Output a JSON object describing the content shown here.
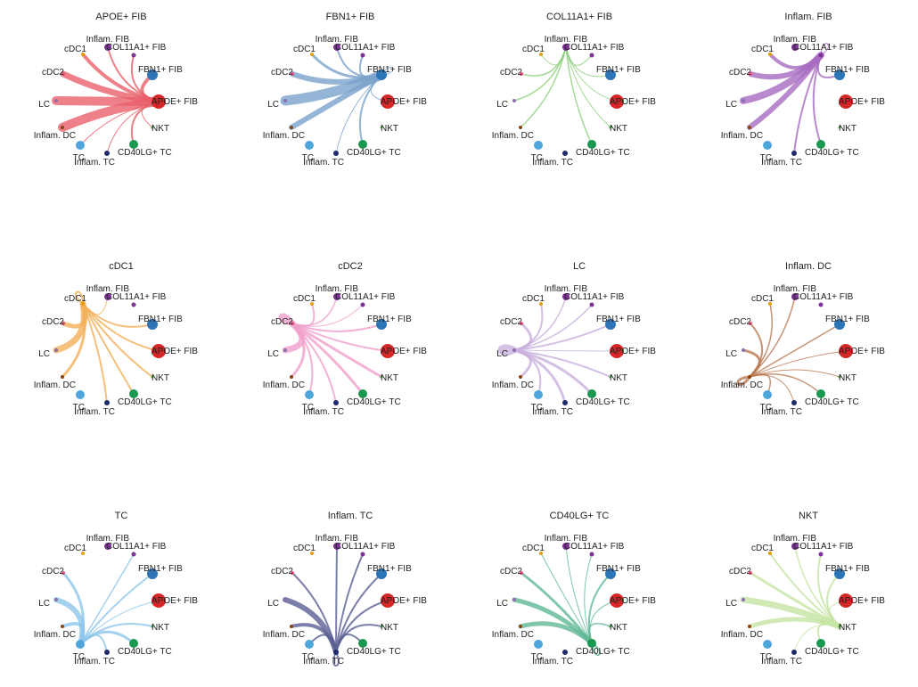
{
  "figure": {
    "type": "circle-plot",
    "description_label": "Cell-cell communication circle plots by source cell group"
  },
  "nodes": [
    {
      "name": "APOE+ FIB",
      "color": "#d62728",
      "size": 8
    },
    {
      "name": "FBN1+ FIB",
      "color": "#2e75b6",
      "size": 6
    },
    {
      "name": "COL11A1+ FIB",
      "color": "#7b3294",
      "size": 4
    },
    {
      "name": "Inflam. FIB",
      "color": "#7b3294",
      "size": 2.5
    },
    {
      "name": "cDC1",
      "color": "#e69f00",
      "size": 2
    },
    {
      "name": "cDC2",
      "color": "#e75480",
      "size": 2
    },
    {
      "name": "LC",
      "color": "#8b6fae",
      "size": 2
    },
    {
      "name": "Inflam. DC",
      "color": "#8b4513",
      "size": 2
    },
    {
      "name": "TC",
      "color": "#4ea5d9",
      "size": 5
    },
    {
      "name": "Inflam. TC",
      "color": "#1f2a6b",
      "size": 3
    },
    {
      "name": "CD40LG+ TC",
      "color": "#1a9850",
      "size": 5
    },
    {
      "name": "NKT",
      "color": "#4caf50",
      "size": 1.5
    }
  ],
  "panels": [
    {
      "title": "APOE+ FIB",
      "source": 0,
      "edge_color": "#e8606b",
      "edges": [
        {
          "to": 1,
          "w": 4
        },
        {
          "to": 2,
          "w": 2
        },
        {
          "to": 3,
          "w": 2
        },
        {
          "to": 4,
          "w": 4
        },
        {
          "to": 5,
          "w": 7
        },
        {
          "to": 6,
          "w": 10
        },
        {
          "to": 7,
          "w": 10
        },
        {
          "to": 8,
          "w": 1
        },
        {
          "to": 9,
          "w": 1
        },
        {
          "to": 10,
          "w": 2
        },
        {
          "to": 11,
          "w": 1
        }
      ]
    },
    {
      "title": "FBN1+ FIB",
      "source": 1,
      "edge_color": "#7aa3cc",
      "edges": [
        {
          "to": 1,
          "w": 1
        },
        {
          "to": 2,
          "w": 2
        },
        {
          "to": 3,
          "w": 2
        },
        {
          "to": 4,
          "w": 3
        },
        {
          "to": 5,
          "w": 6
        },
        {
          "to": 6,
          "w": 11
        },
        {
          "to": 7,
          "w": 6
        },
        {
          "to": 0,
          "w": 1
        },
        {
          "to": 9,
          "w": 1
        },
        {
          "to": 10,
          "w": 2
        }
      ]
    },
    {
      "title": "COL11A1+ FIB",
      "source": 2,
      "edge_color": "#8ecf7e",
      "edges": [
        {
          "to": 3,
          "w": 1
        },
        {
          "to": 4,
          "w": 1
        },
        {
          "to": 5,
          "w": 1.5
        },
        {
          "to": 6,
          "w": 1.5
        },
        {
          "to": 7,
          "w": 1.5
        },
        {
          "to": 1,
          "w": 1
        },
        {
          "to": 0,
          "w": 1
        },
        {
          "to": 11,
          "w": 1
        },
        {
          "to": 10,
          "w": 1.5
        }
      ]
    },
    {
      "title": "Inflam. FIB",
      "source": 3,
      "edge_color": "#a86cc1",
      "edges": [
        {
          "to": 3,
          "w": 1
        },
        {
          "to": 4,
          "w": 4
        },
        {
          "to": 5,
          "w": 6
        },
        {
          "to": 6,
          "w": 8
        },
        {
          "to": 7,
          "w": 6
        },
        {
          "to": 1,
          "w": 2
        },
        {
          "to": 9,
          "w": 2
        },
        {
          "to": 10,
          "w": 2
        }
      ]
    },
    {
      "title": "cDC1",
      "source": 4,
      "edge_color": "#f2b05a",
      "edges": [
        {
          "to": 4,
          "w": 2
        },
        {
          "to": 5,
          "w": 5
        },
        {
          "to": 6,
          "w": 7
        },
        {
          "to": 7,
          "w": 3
        },
        {
          "to": 2,
          "w": 1
        },
        {
          "to": 1,
          "w": 2
        },
        {
          "to": 0,
          "w": 2
        },
        {
          "to": 11,
          "w": 2
        },
        {
          "to": 10,
          "w": 2
        },
        {
          "to": 9,
          "w": 2
        }
      ]
    },
    {
      "title": "cDC2",
      "source": 5,
      "edge_color": "#f0a0cc",
      "edges": [
        {
          "to": 5,
          "w": 5
        },
        {
          "to": 6,
          "w": 7
        },
        {
          "to": 7,
          "w": 3
        },
        {
          "to": 4,
          "w": 2
        },
        {
          "to": 3,
          "w": 1
        },
        {
          "to": 2,
          "w": 1.5
        },
        {
          "to": 1,
          "w": 2
        },
        {
          "to": 0,
          "w": 2
        },
        {
          "to": 11,
          "w": 3
        },
        {
          "to": 10,
          "w": 3
        },
        {
          "to": 9,
          "w": 2
        },
        {
          "to": 8,
          "w": 2
        }
      ]
    },
    {
      "title": "LC",
      "source": 6,
      "edge_color": "#c9b0dc",
      "edges": [
        {
          "to": 6,
          "w": 7
        },
        {
          "to": 5,
          "w": 3
        },
        {
          "to": 4,
          "w": 2
        },
        {
          "to": 3,
          "w": 1.5
        },
        {
          "to": 2,
          "w": 1.5
        },
        {
          "to": 1,
          "w": 2
        },
        {
          "to": 0,
          "w": 1
        },
        {
          "to": 11,
          "w": 2
        },
        {
          "to": 10,
          "w": 3
        },
        {
          "to": 9,
          "w": 3
        },
        {
          "to": 8,
          "w": 2
        },
        {
          "to": 7,
          "w": 3
        }
      ]
    },
    {
      "title": "Inflam. DC",
      "source": 7,
      "edge_color": "#b97a52",
      "edges": [
        {
          "to": 7,
          "w": 3
        },
        {
          "to": 6,
          "w": 3
        },
        {
          "to": 5,
          "w": 2
        },
        {
          "to": 4,
          "w": 1.5
        },
        {
          "to": 2,
          "w": 1.5
        },
        {
          "to": 1,
          "w": 1.5
        },
        {
          "to": 0,
          "w": 1
        },
        {
          "to": 11,
          "w": 1
        },
        {
          "to": 10,
          "w": 1.5
        },
        {
          "to": 9,
          "w": 1
        },
        {
          "to": 8,
          "w": 1.5
        }
      ]
    },
    {
      "title": "TC",
      "source": 8,
      "edge_color": "#8cc6ea",
      "edges": [
        {
          "to": 6,
          "w": 6
        },
        {
          "to": 5,
          "w": 3
        },
        {
          "to": 7,
          "w": 4
        },
        {
          "to": 3,
          "w": 1.5
        },
        {
          "to": 1,
          "w": 2
        },
        {
          "to": 0,
          "w": 1
        },
        {
          "to": 11,
          "w": 2
        },
        {
          "to": 10,
          "w": 3
        },
        {
          "to": 9,
          "w": 2
        }
      ]
    },
    {
      "title": "Inflam. TC",
      "source": 9,
      "edge_color": "#5a5f94",
      "edges": [
        {
          "to": 9,
          "w": 2
        },
        {
          "to": 6,
          "w": 6
        },
        {
          "to": 7,
          "w": 4
        },
        {
          "to": 5,
          "w": 2
        },
        {
          "to": 3,
          "w": 2
        },
        {
          "to": 2,
          "w": 2
        },
        {
          "to": 1,
          "w": 2
        },
        {
          "to": 0,
          "w": 2
        },
        {
          "to": 11,
          "w": 2
        },
        {
          "to": 10,
          "w": 2
        },
        {
          "to": 8,
          "w": 2
        }
      ]
    },
    {
      "title": "CD40LG+ TC",
      "source": 10,
      "edge_color": "#5fb896",
      "edges": [
        {
          "to": 10,
          "w": 2
        },
        {
          "to": 6,
          "w": 5
        },
        {
          "to": 7,
          "w": 5
        },
        {
          "to": 5,
          "w": 3
        },
        {
          "to": 4,
          "w": 1
        },
        {
          "to": 3,
          "w": 1
        },
        {
          "to": 2,
          "w": 1
        },
        {
          "to": 1,
          "w": 2
        },
        {
          "to": 0,
          "w": 1
        },
        {
          "to": 11,
          "w": 1.5
        }
      ]
    },
    {
      "title": "NKT",
      "source": 11,
      "edge_color": "#c5e3a2",
      "edges": [
        {
          "to": 6,
          "w": 7
        },
        {
          "to": 7,
          "w": 5
        },
        {
          "to": 5,
          "w": 3
        },
        {
          "to": 4,
          "w": 2
        },
        {
          "to": 3,
          "w": 2
        },
        {
          "to": 2,
          "w": 1.5
        },
        {
          "to": 1,
          "w": 2
        },
        {
          "to": 0,
          "w": 1
        },
        {
          "to": 10,
          "w": 2
        },
        {
          "to": 9,
          "w": 1
        }
      ]
    }
  ]
}
